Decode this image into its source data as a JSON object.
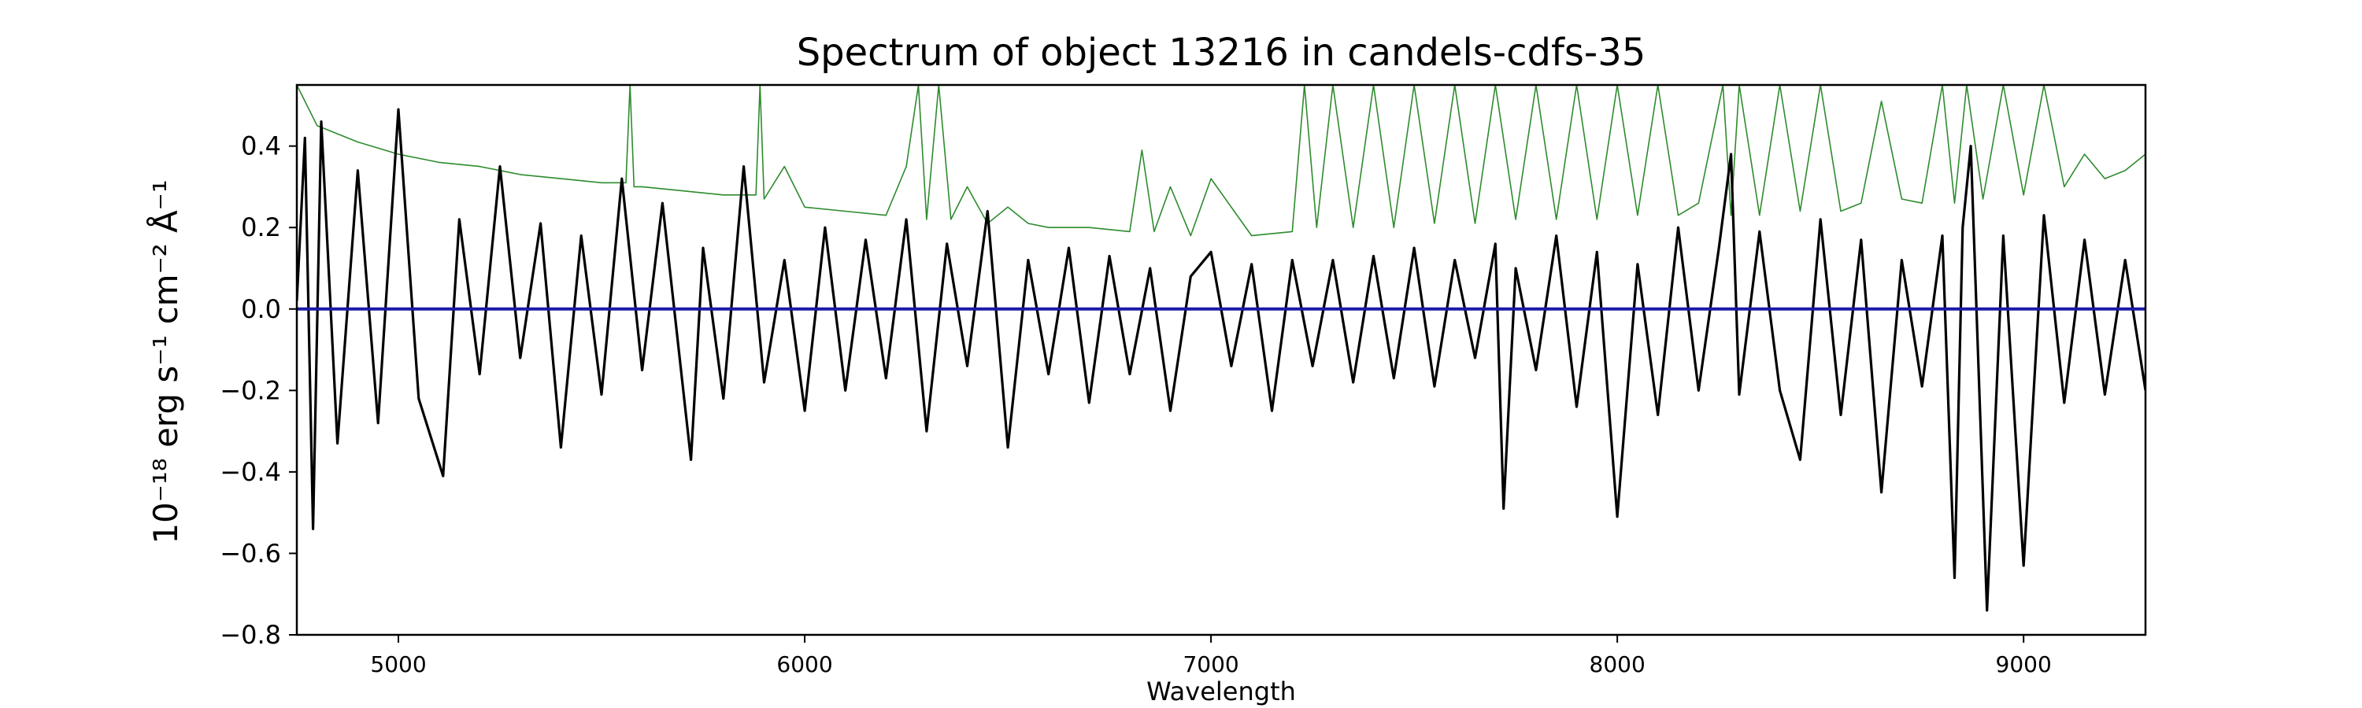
{
  "chart_data": {
    "type": "line",
    "title": "Spectrum of object 13216 in candels-cdfs-35",
    "xlabel": "Wavelength",
    "ylabel": "10⁻¹⁸ erg s⁻¹ cm⁻² Å⁻¹",
    "xlim": [
      4750,
      9300
    ],
    "ylim": [
      -0.8,
      0.55
    ],
    "xticks": [
      5000,
      6000,
      7000,
      8000,
      9000
    ],
    "yticks": [
      -0.8,
      -0.6,
      -0.4,
      -0.2,
      0.0,
      0.2,
      0.4
    ],
    "grid": false,
    "legend": "none",
    "series": [
      {
        "role": "flux",
        "color": "#000000",
        "x": [
          4750,
          4770,
          4790,
          4810,
          4850,
          4900,
          4950,
          5000,
          5050,
          5110,
          5150,
          5200,
          5250,
          5300,
          5350,
          5400,
          5450,
          5500,
          5550,
          5600,
          5650,
          5720,
          5750,
          5800,
          5850,
          5900,
          5950,
          6000,
          6050,
          6100,
          6150,
          6200,
          6250,
          6300,
          6350,
          6400,
          6450,
          6500,
          6550,
          6600,
          6650,
          6700,
          6750,
          6800,
          6850,
          6900,
          6950,
          7000,
          7050,
          7100,
          7150,
          7200,
          7250,
          7300,
          7350,
          7400,
          7450,
          7500,
          7550,
          7600,
          7650,
          7700,
          7720,
          7750,
          7800,
          7850,
          7900,
          7950,
          8000,
          8050,
          8100,
          8150,
          8200,
          8250,
          8280,
          8300,
          8350,
          8400,
          8450,
          8500,
          8550,
          8600,
          8650,
          8700,
          8750,
          8800,
          8830,
          8850,
          8870,
          8910,
          8950,
          9000,
          9050,
          9100,
          9150,
          9200,
          9250,
          9300
        ],
        "y": [
          0.02,
          0.42,
          -0.54,
          0.46,
          -0.33,
          0.34,
          -0.28,
          0.49,
          -0.22,
          -0.41,
          0.22,
          -0.16,
          0.35,
          -0.12,
          0.21,
          -0.34,
          0.18,
          -0.21,
          0.32,
          -0.15,
          0.26,
          -0.37,
          0.15,
          -0.22,
          0.35,
          -0.18,
          0.12,
          -0.25,
          0.2,
          -0.2,
          0.17,
          -0.17,
          0.22,
          -0.3,
          0.16,
          -0.14,
          0.24,
          -0.34,
          0.12,
          -0.16,
          0.15,
          -0.23,
          0.13,
          -0.16,
          0.1,
          -0.25,
          0.08,
          0.14,
          -0.14,
          0.11,
          -0.25,
          0.12,
          -0.14,
          0.12,
          -0.18,
          0.13,
          -0.17,
          0.15,
          -0.19,
          0.12,
          -0.12,
          0.16,
          -0.49,
          0.1,
          -0.15,
          0.18,
          -0.24,
          0.14,
          -0.51,
          0.11,
          -0.26,
          0.2,
          -0.2,
          0.15,
          0.38,
          -0.21,
          0.19,
          -0.2,
          -0.37,
          0.22,
          -0.26,
          0.17,
          -0.45,
          0.12,
          -0.19,
          0.18,
          -0.66,
          0.2,
          0.4,
          -0.74,
          0.18,
          -0.63,
          0.23,
          -0.23,
          0.17,
          -0.21,
          0.12,
          -0.2
        ]
      },
      {
        "role": "error",
        "color": "#2e8b2e",
        "x": [
          4750,
          4800,
          4900,
          5000,
          5100,
          5200,
          5300,
          5400,
          5500,
          5560,
          5570,
          5580,
          5600,
          5700,
          5800,
          5880,
          5890,
          5900,
          5950,
          6000,
          6100,
          6200,
          6250,
          6280,
          6300,
          6330,
          6360,
          6400,
          6450,
          6500,
          6550,
          6600,
          6700,
          6800,
          6830,
          6860,
          6900,
          6950,
          7000,
          7100,
          7200,
          7230,
          7260,
          7300,
          7350,
          7400,
          7450,
          7500,
          7550,
          7600,
          7650,
          7700,
          7750,
          7800,
          7850,
          7900,
          7950,
          8000,
          8050,
          8100,
          8150,
          8200,
          8260,
          8280,
          8300,
          8350,
          8400,
          8450,
          8500,
          8550,
          8600,
          8650,
          8700,
          8750,
          8800,
          8830,
          8860,
          8900,
          8950,
          9000,
          9050,
          9100,
          9150,
          9200,
          9250,
          9300
        ],
        "y": [
          0.55,
          0.45,
          0.41,
          0.38,
          0.36,
          0.35,
          0.33,
          0.32,
          0.31,
          0.31,
          0.55,
          0.3,
          0.3,
          0.29,
          0.28,
          0.28,
          0.55,
          0.27,
          0.35,
          0.25,
          0.24,
          0.23,
          0.35,
          0.55,
          0.22,
          0.55,
          0.22,
          0.3,
          0.21,
          0.25,
          0.21,
          0.2,
          0.2,
          0.19,
          0.39,
          0.19,
          0.3,
          0.18,
          0.32,
          0.18,
          0.19,
          0.55,
          0.2,
          0.55,
          0.2,
          0.55,
          0.2,
          0.55,
          0.21,
          0.55,
          0.21,
          0.55,
          0.22,
          0.55,
          0.22,
          0.55,
          0.22,
          0.55,
          0.23,
          0.55,
          0.23,
          0.26,
          0.55,
          0.23,
          0.55,
          0.23,
          0.55,
          0.24,
          0.55,
          0.24,
          0.26,
          0.51,
          0.27,
          0.26,
          0.55,
          0.26,
          0.55,
          0.27,
          0.55,
          0.28,
          0.55,
          0.3,
          0.38,
          0.32,
          0.34,
          0.38
        ]
      },
      {
        "role": "model",
        "color": "#1a1aa6",
        "x": [
          4750,
          9300
        ],
        "y": [
          0.0,
          0.0
        ]
      }
    ]
  }
}
